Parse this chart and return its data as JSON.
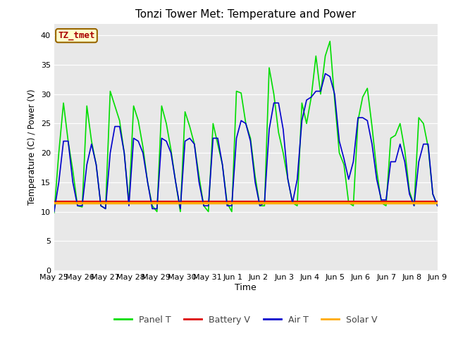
{
  "title": "Tonzi Tower Met: Temperature and Power",
  "xlabel": "Time",
  "ylabel": "Temperature (C) / Power (V)",
  "ylim": [
    0,
    42
  ],
  "yticks": [
    0,
    5,
    10,
    15,
    20,
    25,
    30,
    35,
    40
  ],
  "fig_bg_color": "#ffffff",
  "plot_bg_color": "#e8e8e8",
  "tz_label": "TZ_tmet",
  "legend": [
    "Panel T",
    "Battery V",
    "Air T",
    "Solar V"
  ],
  "legend_colors": [
    "#00dd00",
    "#dd0000",
    "#0000cc",
    "#ffaa00"
  ],
  "x_tick_labels": [
    "May 25",
    "May 26",
    "May 27",
    "May 28",
    "May 29",
    "May 30",
    "May 31",
    "Jun 1",
    "Jun 2",
    "Jun 3",
    "Jun 4",
    "Jun 5",
    "Jun 6",
    "Jun 7",
    "Jun 8",
    "Jun 9"
  ],
  "panel_t": [
    9.8,
    20.0,
    28.5,
    22.0,
    17.0,
    11.0,
    10.8,
    28.0,
    22.0,
    18.0,
    11.0,
    10.5,
    30.5,
    28.0,
    25.5,
    20.0,
    11.5,
    28.0,
    25.5,
    21.0,
    15.0,
    11.0,
    10.0,
    28.0,
    25.0,
    20.5,
    15.0,
    10.0,
    27.0,
    24.5,
    21.5,
    16.0,
    11.0,
    10.0,
    25.0,
    21.5,
    18.0,
    11.5,
    10.0,
    30.5,
    30.2,
    25.0,
    22.5,
    16.0,
    11.0,
    11.0,
    34.5,
    30.0,
    23.5,
    20.0,
    15.5,
    11.5,
    11.0,
    28.5,
    25.0,
    29.5,
    36.5,
    30.0,
    36.5,
    39.0,
    29.0,
    20.0,
    18.0,
    11.5,
    11.0,
    25.5,
    29.5,
    31.0,
    24.5,
    17.0,
    11.5,
    11.0,
    22.5,
    23.0,
    25.0,
    20.5,
    13.5,
    11.0,
    26.0,
    25.0,
    21.0,
    13.0,
    11.0
  ],
  "air_t": [
    10.0,
    15.0,
    22.0,
    22.0,
    15.0,
    11.0,
    11.0,
    18.0,
    21.5,
    18.0,
    11.0,
    10.5,
    20.0,
    24.5,
    24.5,
    20.0,
    11.0,
    22.5,
    22.0,
    20.0,
    15.0,
    10.5,
    10.5,
    22.5,
    22.0,
    20.0,
    15.0,
    10.5,
    22.0,
    22.5,
    21.5,
    15.0,
    11.0,
    11.0,
    22.5,
    22.5,
    18.0,
    11.0,
    11.0,
    22.5,
    25.5,
    25.0,
    22.0,
    15.0,
    11.0,
    11.5,
    24.0,
    28.5,
    28.5,
    24.0,
    15.5,
    11.5,
    15.5,
    25.5,
    29.0,
    29.5,
    30.5,
    30.5,
    33.5,
    33.0,
    30.0,
    22.0,
    19.0,
    15.5,
    18.5,
    26.0,
    26.0,
    25.5,
    21.5,
    15.5,
    12.0,
    12.0,
    18.5,
    18.5,
    21.5,
    18.5,
    13.0,
    11.0,
    18.5,
    21.5,
    21.5,
    13.0,
    11.0
  ],
  "battery_v": [
    11.8,
    11.8,
    11.8,
    11.8,
    11.8,
    11.8,
    11.8,
    11.8,
    11.8,
    11.8,
    11.8,
    11.8,
    11.8,
    11.8,
    11.8,
    11.8,
    11.8,
    11.8,
    11.8,
    11.8,
    11.8,
    11.8,
    11.8,
    11.8,
    11.8,
    11.8,
    11.8,
    11.8,
    11.8,
    11.8,
    11.8,
    11.8,
    11.8,
    11.8,
    11.8,
    11.8,
    11.8,
    11.8,
    11.8,
    11.8,
    11.8,
    11.8,
    11.8,
    11.8,
    11.8,
    11.8,
    11.8,
    11.8,
    11.8,
    11.8,
    11.8,
    11.8,
    11.8,
    11.8,
    11.8,
    11.8,
    11.8,
    11.8,
    11.8,
    11.8,
    11.8,
    11.8,
    11.8,
    11.8,
    11.8,
    11.8,
    11.8,
    11.8,
    11.8,
    11.8,
    11.8,
    11.8,
    11.8,
    11.8,
    11.8,
    11.8,
    11.8,
    11.8,
    11.8,
    11.8,
    11.8,
    11.8,
    11.8
  ],
  "solar_v": [
    11.5,
    11.5,
    11.5,
    11.5,
    11.5,
    11.5,
    11.5,
    11.5,
    11.5,
    11.5,
    11.5,
    11.5,
    11.5,
    11.5,
    11.5,
    11.5,
    11.5,
    11.5,
    11.5,
    11.5,
    11.5,
    11.5,
    11.5,
    11.5,
    11.5,
    11.5,
    11.5,
    11.5,
    11.5,
    11.5,
    11.5,
    11.5,
    11.5,
    11.5,
    11.5,
    11.5,
    11.5,
    11.5,
    11.5,
    11.5,
    11.5,
    11.5,
    11.5,
    11.5,
    11.5,
    11.5,
    11.5,
    11.5,
    11.5,
    11.5,
    11.5,
    11.5,
    11.5,
    11.5,
    11.5,
    11.5,
    11.5,
    11.5,
    11.5,
    11.5,
    11.5,
    11.5,
    11.5,
    11.5,
    11.5,
    11.5,
    11.5,
    11.5,
    11.5,
    11.5,
    11.5,
    11.5,
    11.5,
    11.5,
    11.5,
    11.5,
    11.5,
    11.5,
    11.5,
    11.5,
    11.5,
    11.5,
    11.5
  ]
}
